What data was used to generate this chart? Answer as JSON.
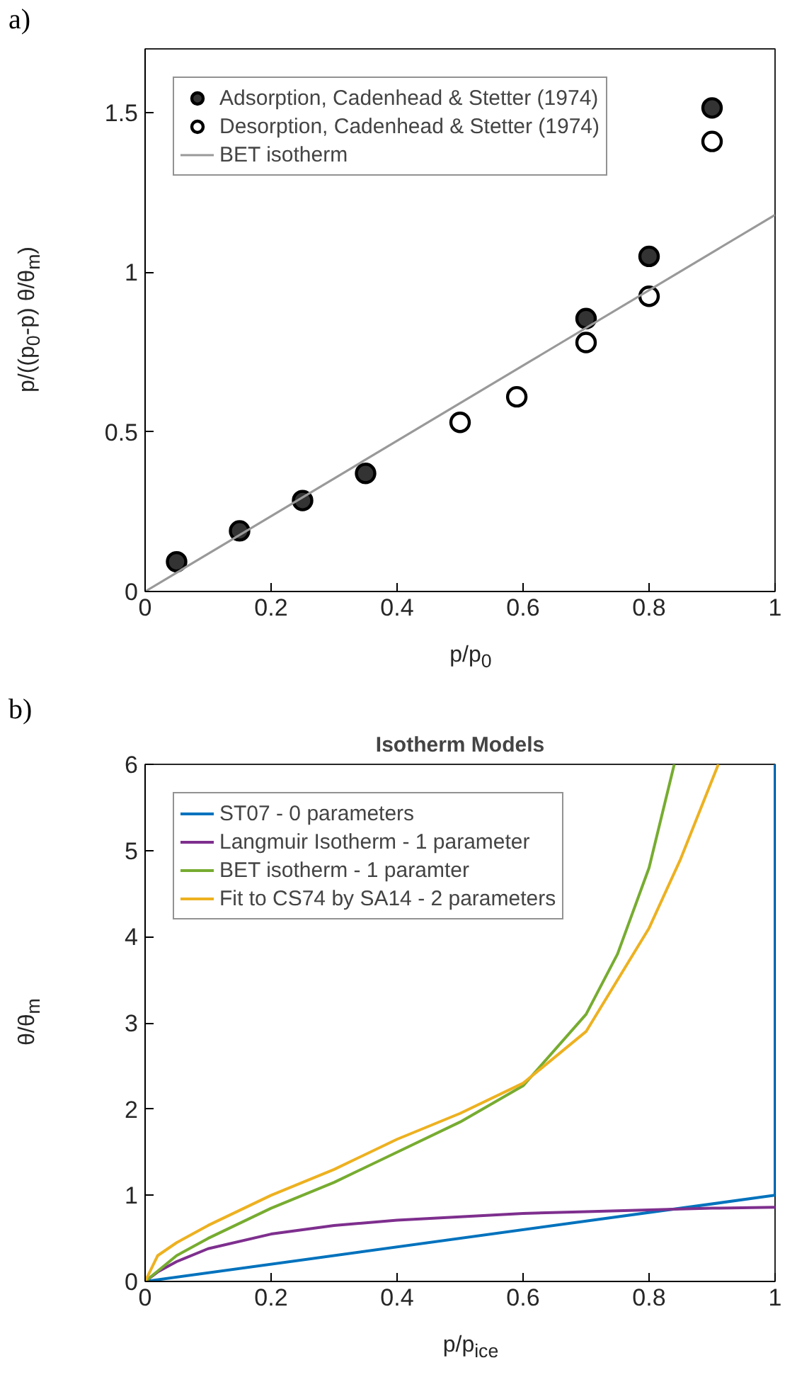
{
  "chart_data": [
    {
      "type": "scatter",
      "annotations": [
        "a)"
      ],
      "xlabel": "p/p$_{0}$",
      "ylabel": "p/((p$_{0}$-p) θ/θ$_{m}$)",
      "xlim": [
        0,
        1
      ],
      "ylim": [
        0,
        1.7
      ],
      "xticks": [
        0,
        0.2,
        0.4,
        0.6,
        0.8,
        1
      ],
      "yticks": [
        0,
        0.5,
        1,
        1.5
      ],
      "grid": false,
      "legend": "top left",
      "series": [
        {
          "name": "Adsorption, Cadenhead & Stetter (1974)",
          "color": "#333333",
          "marker": "circle",
          "x": [
            0.05,
            0.15,
            0.25,
            0.35,
            0.7,
            0.8,
            0.9
          ],
          "values": [
            0.093,
            0.19,
            0.285,
            0.37,
            0.855,
            1.05,
            1.515
          ]
        },
        {
          "name": "Desorption, Cadenhead & Stetter (1974)",
          "color": "#ffffff",
          "marker": "circle",
          "x": [
            0.5,
            0.59,
            0.7,
            0.8,
            0.9
          ],
          "values": [
            0.53,
            0.61,
            0.78,
            0.925,
            1.41
          ]
        },
        {
          "name": "BET isotherm",
          "type": "line",
          "color": "#999999",
          "x": [
            0,
            1
          ],
          "values": [
            0,
            1.18
          ]
        }
      ]
    },
    {
      "type": "line",
      "title": "Isotherm Models",
      "annotations": [
        "b)"
      ],
      "xlabel": "p/p$_{ice}$",
      "ylabel": "θ/θ$_{m}$",
      "xlim": [
        0,
        1
      ],
      "ylim": [
        0,
        6
      ],
      "xticks": [
        0,
        0.2,
        0.4,
        0.6,
        0.8,
        1
      ],
      "yticks": [
        0,
        1,
        2,
        3,
        4,
        5,
        6
      ],
      "grid": false,
      "legend": "top left",
      "line_style": "solid",
      "series": [
        {
          "name": "ST07 - 0 parameters",
          "color": "#0072bd",
          "x": [
            0,
            1,
            1
          ],
          "values": [
            0,
            1,
            6
          ]
        },
        {
          "name": "Langmuir Isotherm - 1 parameter",
          "color": "#7e2f8e",
          "x": [
            0,
            0.02,
            0.05,
            0.1,
            0.2,
            0.3,
            0.4,
            0.5,
            0.6,
            0.7,
            0.8,
            0.9,
            1
          ],
          "values": [
            0,
            0.11,
            0.23,
            0.38,
            0.55,
            0.65,
            0.71,
            0.75,
            0.79,
            0.81,
            0.83,
            0.85,
            0.86
          ]
        },
        {
          "name": "BET isotherm - 1 paramter",
          "color": "#77ac30",
          "x": [
            0,
            0.05,
            0.1,
            0.2,
            0.3,
            0.4,
            0.5,
            0.6,
            0.7,
            0.75,
            0.8,
            0.84
          ],
          "values": [
            0,
            0.3,
            0.5,
            0.85,
            1.15,
            1.5,
            1.85,
            2.27,
            3.1,
            3.8,
            4.8,
            6
          ]
        },
        {
          "name": "Fit to CS74 by SA14 - 2 parameters",
          "color": "#edb120",
          "x": [
            0,
            0.02,
            0.05,
            0.1,
            0.2,
            0.3,
            0.4,
            0.5,
            0.6,
            0.7,
            0.8,
            0.85,
            0.91
          ],
          "values": [
            0,
            0.3,
            0.45,
            0.65,
            1.0,
            1.3,
            1.65,
            1.95,
            2.3,
            2.9,
            4.1,
            4.9,
            6
          ]
        }
      ]
    }
  ]
}
